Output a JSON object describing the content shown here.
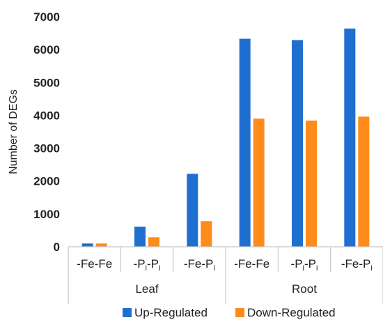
{
  "chart_data": {
    "type": "bar",
    "ylabel": "Number of DEGs",
    "ylim": [
      0,
      7000
    ],
    "yticks": [
      0,
      1000,
      2000,
      3000,
      4000,
      5000,
      6000,
      7000
    ],
    "grid": false,
    "categories": [
      {
        "main": "-Fe-Fe",
        "parts": [
          {
            "t": "-Fe-Fe",
            "sub": false
          }
        ]
      },
      {
        "main": "-Pi-Pi",
        "parts": [
          {
            "t": "-P",
            "sub": false
          },
          {
            "t": "i",
            "sub": true
          },
          {
            "t": "-P",
            "sub": false
          },
          {
            "t": "i",
            "sub": true
          }
        ]
      },
      {
        "main": "-Fe-Pi",
        "parts": [
          {
            "t": "-Fe-P",
            "sub": false
          },
          {
            "t": "i",
            "sub": true
          }
        ]
      },
      {
        "main": "-Fe-Fe",
        "parts": [
          {
            "t": "-Fe-Fe",
            "sub": false
          }
        ]
      },
      {
        "main": "-Pi-Pi",
        "parts": [
          {
            "t": "-P",
            "sub": false
          },
          {
            "t": "i",
            "sub": true
          },
          {
            "t": "-P",
            "sub": false
          },
          {
            "t": "i",
            "sub": true
          }
        ]
      },
      {
        "main": "-Fe-Pi",
        "parts": [
          {
            "t": "-Fe-P",
            "sub": false
          },
          {
            "t": "i",
            "sub": true
          }
        ]
      }
    ],
    "groups": [
      {
        "label": "Leaf",
        "span": [
          0,
          2
        ]
      },
      {
        "label": "Root",
        "span": [
          3,
          5
        ]
      }
    ],
    "series": [
      {
        "name": "Up-Regulated",
        "color": "#1f6fd1",
        "values": [
          100,
          610,
          2220,
          6330,
          6290,
          6640
        ]
      },
      {
        "name": "Down-Regulated",
        "color": "#ff8c1a",
        "values": [
          100,
          290,
          780,
          3900,
          3840,
          3960
        ]
      }
    ],
    "legend_position": "bottom"
  }
}
